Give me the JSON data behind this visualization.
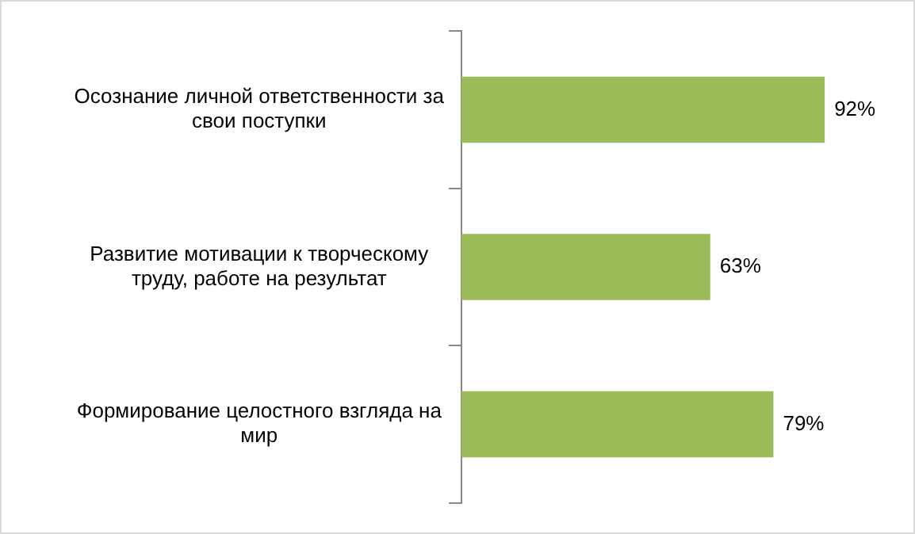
{
  "chart_data": {
    "type": "bar",
    "orientation": "horizontal",
    "categories": [
      "Осознание личной ответственности за свои поступки",
      "Развитие мотивации к творческому труду, работе на результат",
      "Формирование целостного взгляда на мир"
    ],
    "values": [
      92,
      63,
      79
    ],
    "value_labels": [
      "92%",
      "63%",
      "79%"
    ],
    "color": "#9bbb59",
    "tick_labels": "y"
  }
}
